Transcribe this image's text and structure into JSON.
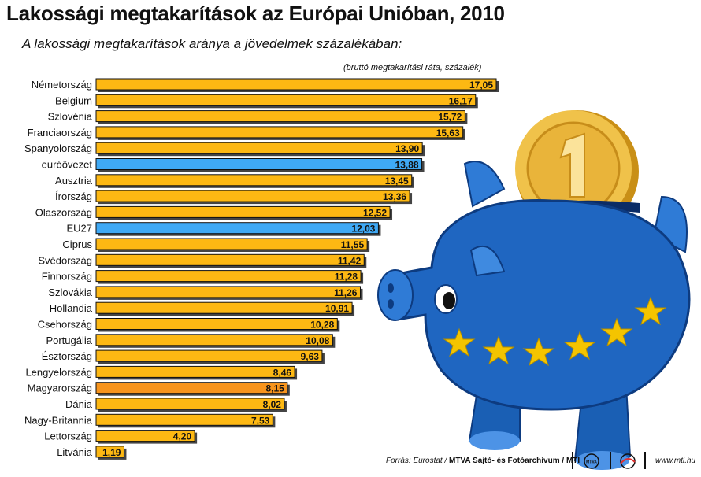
{
  "title": "Lakossági megtakarítások az Európai Unióban, 2010",
  "subtitle": "A lakossági megtakarítások aránya a jövedelmek százalékában:",
  "unit_note": "(bruttó megtakarítási ráta, százalék)",
  "footer": {
    "source_prefix": "Forrás: Eurostat / ",
    "source_bold": "MTVA Sajtó- és Fotóarchívum / MTI",
    "logo1_text": "MTVA",
    "website": "www.mti.hu"
  },
  "colors": {
    "bar_default": "#fdb813",
    "bar_highlight": "#3fa9f5",
    "bar_hungary": "#f7941d",
    "bar_edge": "#111111",
    "piggy_body": "#1a5fb4",
    "coin": "#e8b33a",
    "star": "#f4c400"
  },
  "chart_data": {
    "type": "bar",
    "orientation": "horizontal",
    "title": "Lakossági megtakarítások az Európai Unióban, 2010",
    "xlabel": "",
    "ylabel": "",
    "xlim": [
      0,
      17.05
    ],
    "grid": false,
    "legend": "none",
    "categories": [
      "Németország",
      "Belgium",
      "Szlovénia",
      "Franciaország",
      "Spanyolország",
      "euróövezet",
      "Ausztria",
      "Írország",
      "Olaszország",
      "EU27",
      "Ciprus",
      "Svédország",
      "Finnország",
      "Szlovákia",
      "Hollandia",
      "Csehország",
      "Portugália",
      "Észtország",
      "Lengyelország",
      "Magyarország",
      "Dánia",
      "Nagy-Britannia",
      "Lettország",
      "Litvánia"
    ],
    "values": [
      17.05,
      16.17,
      15.72,
      15.63,
      13.9,
      13.88,
      13.45,
      13.36,
      12.52,
      12.03,
      11.55,
      11.42,
      11.28,
      11.26,
      10.91,
      10.28,
      10.08,
      9.63,
      8.46,
      8.15,
      8.02,
      7.53,
      4.2,
      1.19
    ],
    "value_labels": [
      "17,05",
      "16,17",
      "15,72",
      "15,63",
      "13,90",
      "13,88",
      "13,45",
      "13,36",
      "12,52",
      "12,03",
      "11,55",
      "11,42",
      "11,28",
      "11,26",
      "10,91",
      "10,28",
      "10,08",
      "9,63",
      "8,46",
      "8,15",
      "8,02",
      "7,53",
      "4,20",
      "1,19"
    ],
    "highlight": {
      "euróövezet": "blue",
      "EU27": "blue",
      "Magyarország": "orange"
    }
  }
}
